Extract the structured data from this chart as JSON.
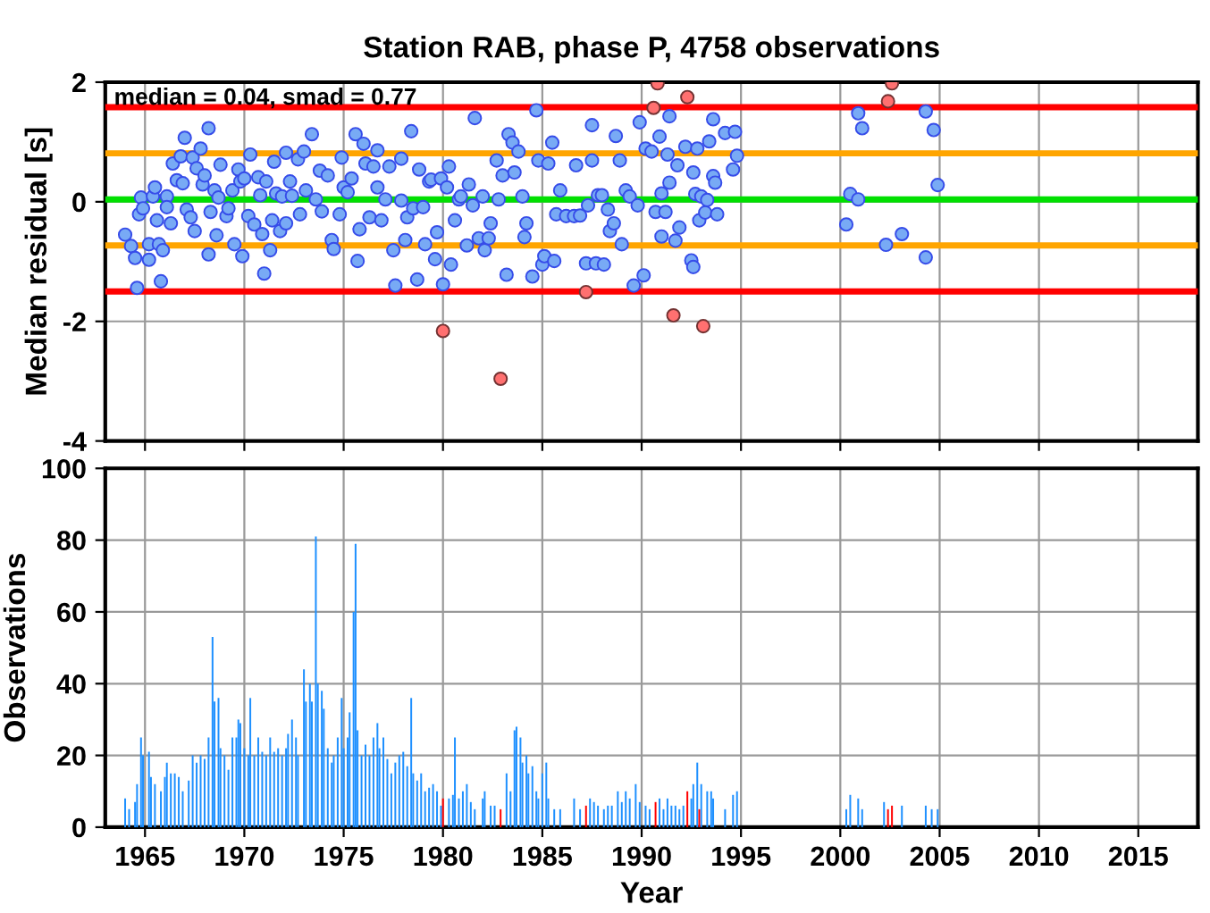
{
  "chart_data": [
    {
      "type": "scatter",
      "title": "Station RAB, phase P, 4758 observations",
      "ylabel": "Median residual [s]",
      "xlim": [
        1963,
        2018
      ],
      "xticks": [
        1965,
        1970,
        1975,
        1980,
        1985,
        1990,
        1995,
        2000,
        2005,
        2010,
        2015
      ],
      "ylim": [
        -4,
        2
      ],
      "yticks": [
        -4,
        -2,
        0,
        2
      ],
      "tick_labels": "y",
      "grid": true,
      "marker": "circle",
      "annotations": [
        "median = 0.04, smad = 0.77"
      ],
      "ref_lines": [
        {
          "axis": "y",
          "value": 1.58,
          "color": "#ff0000"
        },
        {
          "axis": "y",
          "value": 0.81,
          "color": "#ffa500"
        },
        {
          "axis": "y",
          "value": 0.04,
          "color": "#00e000"
        },
        {
          "axis": "y",
          "value": -0.73,
          "color": "#ffa500"
        },
        {
          "axis": "y",
          "value": -1.5,
          "color": "#ff0000"
        }
      ],
      "series": [
        {
          "color": "#78aaf5",
          "x": [
            1964.0,
            1964.3,
            1964.5,
            1964.6,
            1964.7,
            1964.8,
            1964.9,
            1965.2,
            1965.2,
            1965.4,
            1965.5,
            1965.6,
            1965.7,
            1965.8,
            1965.9,
            1966.1,
            1966.1,
            1966.3,
            1966.4,
            1966.6,
            1966.8,
            1966.9,
            1967.0,
            1967.1,
            1967.3,
            1967.4,
            1967.5,
            1967.6,
            1967.8,
            1967.9,
            1968.0,
            1968.2,
            1968.2,
            1968.3,
            1968.5,
            1968.6,
            1968.7,
            1968.8,
            1969.1,
            1969.2,
            1969.4,
            1969.5,
            1969.7,
            1969.8,
            1969.9,
            1970.0,
            1970.2,
            1970.3,
            1970.5,
            1970.7,
            1970.8,
            1970.9,
            1971.0,
            1971.1,
            1971.3,
            1971.4,
            1971.5,
            1971.6,
            1971.8,
            1971.9,
            1972.1,
            1972.1,
            1972.3,
            1972.4,
            1972.7,
            1972.8,
            1973.0,
            1973.1,
            1973.4,
            1973.6,
            1973.8,
            1973.9,
            1974.2,
            1974.4,
            1974.5,
            1974.8,
            1974.9,
            1975.0,
            1975.2,
            1975.4,
            1975.6,
            1975.7,
            1975.8,
            1976.0,
            1976.1,
            1976.3,
            1976.5,
            1976.7,
            1976.7,
            1976.9,
            1977.1,
            1977.3,
            1977.5,
            1977.6,
            1977.9,
            1977.9,
            1978.1,
            1978.2,
            1978.4,
            1978.5,
            1978.7,
            1978.8,
            1979.0,
            1979.1,
            1979.3,
            1979.4,
            1979.6,
            1979.7,
            1979.9,
            1980.0,
            1980.2,
            1980.3,
            1980.4,
            1980.6,
            1980.8,
            1980.9,
            1981.2,
            1981.3,
            1981.5,
            1981.6,
            1981.8,
            1982.0,
            1982.1,
            1982.3,
            1982.4,
            1982.7,
            1982.8,
            1983.0,
            1983.2,
            1983.3,
            1983.5,
            1983.6,
            1983.8,
            1984.0,
            1984.1,
            1984.2,
            1984.5,
            1984.7,
            1984.8,
            1985.0,
            1985.1,
            1985.3,
            1985.5,
            1985.6,
            1985.7,
            1985.9,
            1986.2,
            1986.6,
            1986.7,
            1986.9,
            1987.2,
            1987.3,
            1987.5,
            1987.5,
            1987.7,
            1987.8,
            1988.0,
            1988.1,
            1988.3,
            1988.4,
            1988.6,
            1988.7,
            1988.9,
            1989.0,
            1989.2,
            1989.4,
            1989.6,
            1989.8,
            1989.9,
            1990.1,
            1990.2,
            1990.5,
            1990.7,
            1990.9,
            1991.0,
            1991.0,
            1991.2,
            1991.3,
            1991.4,
            1991.4,
            1991.7,
            1991.8,
            1991.9,
            1992.2,
            1992.5,
            1992.6,
            1992.6,
            1992.7,
            1992.8,
            1992.9,
            1993.0,
            1993.2,
            1993.3,
            1993.4,
            1993.6,
            1993.6,
            1993.7,
            1993.8,
            1994.2,
            1994.6,
            1994.7,
            1994.8,
            2000.3,
            2000.5,
            2000.9,
            2000.9,
            2001.1,
            2002.3,
            2003.1,
            2004.3,
            2004.3,
            2004.7,
            2004.9
          ],
          "values": [
            -0.55,
            -0.74,
            -0.94,
            -1.44,
            -0.21,
            0.07,
            -0.11,
            -0.71,
            -0.97,
            0.09,
            0.24,
            -0.31,
            -0.71,
            -1.33,
            -0.81,
            0.09,
            -0.09,
            -0.36,
            0.64,
            0.36,
            0.76,
            0.31,
            1.07,
            -0.13,
            -0.26,
            0.74,
            -0.49,
            0.56,
            0.89,
            0.29,
            0.44,
            1.23,
            -0.88,
            -0.17,
            0.19,
            -0.56,
            0.07,
            0.62,
            -0.24,
            -0.11,
            0.19,
            -0.71,
            0.54,
            0.34,
            -0.91,
            0.39,
            -0.24,
            0.79,
            -0.38,
            0.41,
            0.11,
            -0.54,
            -1.2,
            0.34,
            -0.81,
            -0.31,
            0.67,
            0.14,
            -0.49,
            0.09,
            0.82,
            -0.36,
            0.34,
            0.1,
            0.71,
            -0.21,
            0.84,
            0.19,
            1.13,
            0.04,
            0.52,
            -0.16,
            0.44,
            -0.64,
            -0.79,
            -0.21,
            0.74,
            0.24,
            0.16,
            0.39,
            1.13,
            -0.99,
            -0.46,
            0.97,
            0.64,
            -0.26,
            0.59,
            0.86,
            0.24,
            -0.31,
            0.04,
            0.59,
            -0.81,
            -1.4,
            0.72,
            0.02,
            -0.64,
            -0.26,
            1.18,
            -0.11,
            -1.3,
            0.54,
            -0.09,
            -0.71,
            0.34,
            0.37,
            -0.96,
            -0.51,
            0.39,
            -1.38,
            0.24,
            0.59,
            -1.05,
            -0.31,
            0.04,
            0.09,
            -0.73,
            0.29,
            -0.06,
            1.4,
            -0.61,
            0.09,
            -0.81,
            -0.61,
            -0.36,
            0.69,
            0.04,
            0.44,
            -1.22,
            1.13,
            0.99,
            0.49,
            0.84,
            0.09,
            -0.59,
            -0.36,
            -1.25,
            1.53,
            0.69,
            -1.05,
            -0.91,
            0.64,
            0.99,
            -0.99,
            -0.21,
            0.19,
            -0.24,
            -0.24,
            0.61,
            -0.23,
            -1.03,
            -0.06,
            1.28,
            0.69,
            -1.03,
            0.11,
            0.11,
            -1.05,
            -0.13,
            -0.49,
            -0.36,
            1.1,
            0.69,
            -0.71,
            0.19,
            0.09,
            -1.4,
            -0.06,
            1.33,
            -1.23,
            0.89,
            0.84,
            -0.17,
            1.09,
            0.14,
            -0.58,
            -0.17,
            0.79,
            1.43,
            0.32,
            -0.65,
            0.61,
            -0.43,
            0.92,
            -0.98,
            0.49,
            -1.09,
            0.13,
            0.89,
            -0.31,
            0.09,
            -0.18,
            0.03,
            1.01,
            1.38,
            0.43,
            0.32,
            -0.21,
            1.15,
            0.54,
            1.17,
            0.77,
            -0.38,
            0.13,
            0.04,
            1.48,
            1.23,
            -0.72,
            -0.54,
            -0.93,
            1.51,
            1.2,
            0.28
          ]
        },
        {
          "color": "#ff7070",
          "x": [
            1980.0,
            1982.9,
            1987.2,
            1990.6,
            1990.8,
            1991.6,
            1992.3,
            1993.1,
            2002.4,
            2002.6
          ],
          "values": [
            -2.16,
            -2.96,
            -1.51,
            1.57,
            1.98,
            -1.9,
            1.75,
            -2.08,
            1.68,
            1.98
          ]
        }
      ]
    },
    {
      "type": "bar",
      "xlabel": "Year",
      "ylabel": "Observations",
      "xlim": [
        1963,
        2018
      ],
      "xticks": [
        1965,
        1970,
        1975,
        1980,
        1985,
        1990,
        1995,
        2000,
        2005,
        2010,
        2015
      ],
      "ylim": [
        0,
        100
      ],
      "yticks": [
        0,
        20,
        40,
        60,
        80,
        100
      ],
      "grid": true,
      "series": [
        {
          "color": "#1e90ff",
          "x": [
            1964.0,
            1964.2,
            1964.5,
            1964.6,
            1964.8,
            1964.9,
            1965.2,
            1965.3,
            1965.5,
            1965.8,
            1966.0,
            1966.1,
            1966.3,
            1966.5,
            1966.7,
            1966.9,
            1967.2,
            1967.4,
            1967.6,
            1967.8,
            1968.0,
            1968.2,
            1968.4,
            1968.5,
            1968.7,
            1968.8,
            1969.0,
            1969.2,
            1969.4,
            1969.6,
            1969.7,
            1969.8,
            1970.0,
            1970.2,
            1970.3,
            1970.5,
            1970.7,
            1970.9,
            1971.1,
            1971.3,
            1971.5,
            1971.7,
            1971.9,
            1972.1,
            1972.2,
            1972.4,
            1972.6,
            1972.7,
            1973.0,
            1973.1,
            1973.3,
            1973.4,
            1973.6,
            1973.7,
            1973.9,
            1974.0,
            1974.2,
            1974.4,
            1974.5,
            1974.7,
            1974.9,
            1975.0,
            1975.2,
            1975.3,
            1975.5,
            1975.6,
            1975.7,
            1975.9,
            1976.1,
            1976.3,
            1976.5,
            1976.7,
            1976.8,
            1977.0,
            1977.2,
            1977.4,
            1977.6,
            1977.8,
            1978.0,
            1978.2,
            1978.4,
            1978.5,
            1978.7,
            1978.9,
            1979.1,
            1979.3,
            1979.5,
            1979.7,
            1979.9,
            1980.3,
            1980.5,
            1980.6,
            1980.8,
            1981.0,
            1981.2,
            1981.4,
            1981.6,
            1982.0,
            1982.1,
            1982.4,
            1982.6,
            1983.2,
            1983.4,
            1983.6,
            1983.7,
            1983.9,
            1984.0,
            1984.2,
            1984.3,
            1984.5,
            1984.7,
            1984.8,
            1985.0,
            1985.2,
            1985.3,
            1985.6,
            1985.9,
            1986.6,
            1986.9,
            1987.4,
            1987.6,
            1987.8,
            1988.1,
            1988.3,
            1988.5,
            1988.8,
            1989.0,
            1989.2,
            1989.4,
            1989.7,
            1989.9,
            1990.2,
            1990.4,
            1990.9,
            1991.1,
            1991.3,
            1991.5,
            1991.7,
            1991.9,
            1992.1,
            1992.5,
            1992.6,
            1992.8,
            1993.0,
            1993.3,
            1993.5,
            1993.6,
            1994.2,
            1994.6,
            1994.8,
            2000.3,
            2000.5,
            2000.9,
            2001.1,
            2002.2,
            2003.1,
            2004.3,
            2004.6,
            2004.9
          ],
          "values": [
            8,
            5,
            7,
            12,
            25,
            20,
            21,
            14,
            12,
            10,
            14,
            18,
            15,
            15,
            14,
            10,
            13,
            20,
            18,
            20,
            19,
            25,
            53,
            35,
            36,
            22,
            20,
            16,
            25,
            25,
            30,
            29,
            22,
            20,
            36,
            20,
            25,
            21,
            20,
            25,
            21,
            22,
            20,
            22,
            26,
            30,
            25,
            20,
            44,
            35,
            40,
            35,
            81,
            40,
            38,
            33,
            22,
            18,
            20,
            25,
            36,
            22,
            25,
            32,
            60,
            79,
            27,
            20,
            23,
            20,
            25,
            29,
            22,
            25,
            19,
            15,
            18,
            20,
            21,
            17,
            36,
            15,
            13,
            15,
            10,
            11,
            12,
            10,
            6,
            8,
            9,
            25,
            8,
            10,
            12,
            7,
            5,
            8,
            10,
            6,
            6,
            15,
            10,
            27,
            28,
            25,
            18,
            20,
            15,
            17,
            10,
            8,
            15,
            18,
            8,
            5,
            5,
            8,
            5,
            8,
            7,
            6,
            5,
            6,
            6,
            10,
            7,
            10,
            8,
            12,
            7,
            6,
            5,
            8,
            5,
            8,
            6,
            6,
            5,
            6,
            8,
            12,
            18,
            12,
            10,
            10,
            8,
            5,
            9,
            10,
            5,
            9,
            8,
            5,
            7,
            6,
            6,
            5,
            5
          ]
        },
        {
          "color": "#ff0000",
          "x": [
            1980.0,
            1982.9,
            1987.2,
            1990.7,
            1992.3,
            1992.9,
            2002.4,
            2002.6
          ],
          "values": [
            8,
            5,
            6,
            7,
            10,
            5,
            5,
            6
          ]
        }
      ]
    }
  ]
}
